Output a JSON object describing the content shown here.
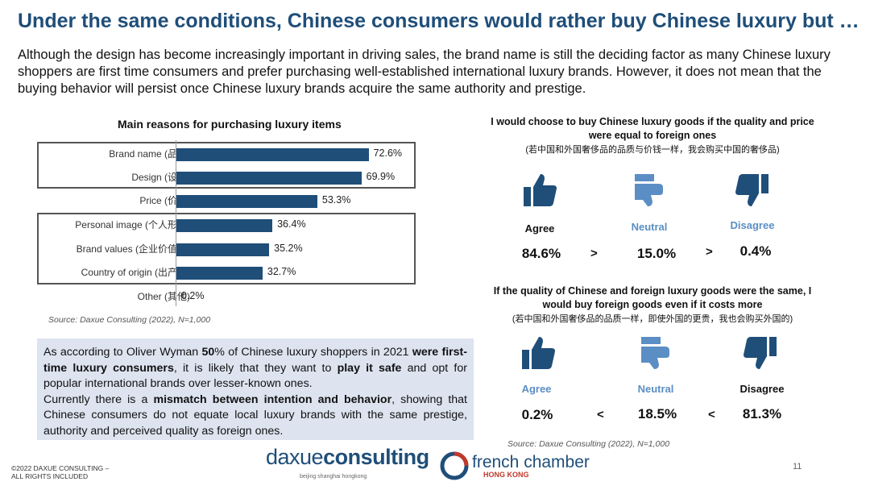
{
  "title": "Under the same conditions, Chinese consumers would rather buy Chinese luxury but …",
  "intro": "Although the design has become increasingly important in driving sales, the brand name is still the deciding factor as many Chinese luxury shoppers are first time consumers and prefer purchasing well-established international luxury brands. However, it does not mean that the buying behavior will persist once Chinese luxury brands acquire the same authority and prestige.",
  "chart_data": {
    "type": "bar",
    "orientation": "horizontal",
    "title": "Main reasons for purchasing luxury items",
    "categories": [
      "Brand name (品牌)",
      "Design (设计)",
      "Price (价钱)",
      "Personal image (个人形象)",
      "Brand values (企业价值观)",
      "Country of origin (出产国)",
      "Other (其他)"
    ],
    "values": [
      72.6,
      69.9,
      53.3,
      36.4,
      35.2,
      32.7,
      0.2
    ],
    "value_labels": [
      "72.6%",
      "69.9%",
      "53.3%",
      "36.4%",
      "35.2%",
      "32.7%",
      "0.2%"
    ],
    "xlim": [
      0,
      100
    ],
    "unit": "%",
    "color": "#1f4e79"
  },
  "chart_source": "Source: Daxue Consulting (2022), N=1,000",
  "note": {
    "p1": "As according to  Oliver Wyman ",
    "p1_bold": "50",
    "p1b": "% of Chinese luxury shoppers in 2021 ",
    "p1_bold2": "were first-time luxury consumers",
    "p1c": ", it is likely that they want to ",
    "p1_bold3": "play it safe",
    "p1d": " and opt for popular international brands over lesser-known ones.",
    "p2": "Currently there is a ",
    "p2_bold": "mismatch between intention and behavior",
    "p2b": ", showing that Chinese consumers do not equate local luxury brands with the same prestige, authority and perceived quality as foreign ones."
  },
  "q1": {
    "title": "I would choose to buy Chinese luxury goods if the quality and price were equal to foreign ones",
    "subtitle": "(若中国和外国奢侈品的品质与价钱一样，我会购买中国的奢侈品)",
    "options": [
      {
        "label": "Agree",
        "value": "84.6%",
        "color": "#1f4e79"
      },
      {
        "label": "Neutral",
        "value": "15.0%",
        "color": "#5b8ec4"
      },
      {
        "label": "Disagree",
        "value": "0.4%",
        "color": "#1f4e79"
      }
    ],
    "cmp": [
      ">",
      ">"
    ]
  },
  "q2": {
    "title": "If the quality of Chinese and foreign luxury goods were the same, I would buy foreign goods even if it costs more",
    "subtitle": "(若中国和外国奢侈品的品质一样，即使外国的更贵，我也会购买外国的)",
    "options": [
      {
        "label": "Agree",
        "value": "0.2%",
        "color": "#1f4e79"
      },
      {
        "label": "Neutral",
        "value": "18.5%",
        "color": "#5b8ec4"
      },
      {
        "label": "Disagree",
        "value": "81.3%",
        "color": "#1f4e79"
      }
    ],
    "cmp": [
      "<",
      "<"
    ]
  },
  "q_source": "Source: Daxue Consulting (2022), N=1,000",
  "footer": {
    "copy1": "©2022 DAXUE CONSULTING –",
    "copy2": "ALL RIGHTS INCLUDED",
    "logo1a": "daxue",
    "logo1b": "consulting",
    "logo1_tag": "beijing shanghai hongkong",
    "logo2": "french chamber",
    "logo2_sub": "HONG KONG",
    "page": "11"
  },
  "colors": {
    "primary": "#1f4e79",
    "neutral": "#5b8ec4",
    "note_bg": "#dde4f0"
  }
}
